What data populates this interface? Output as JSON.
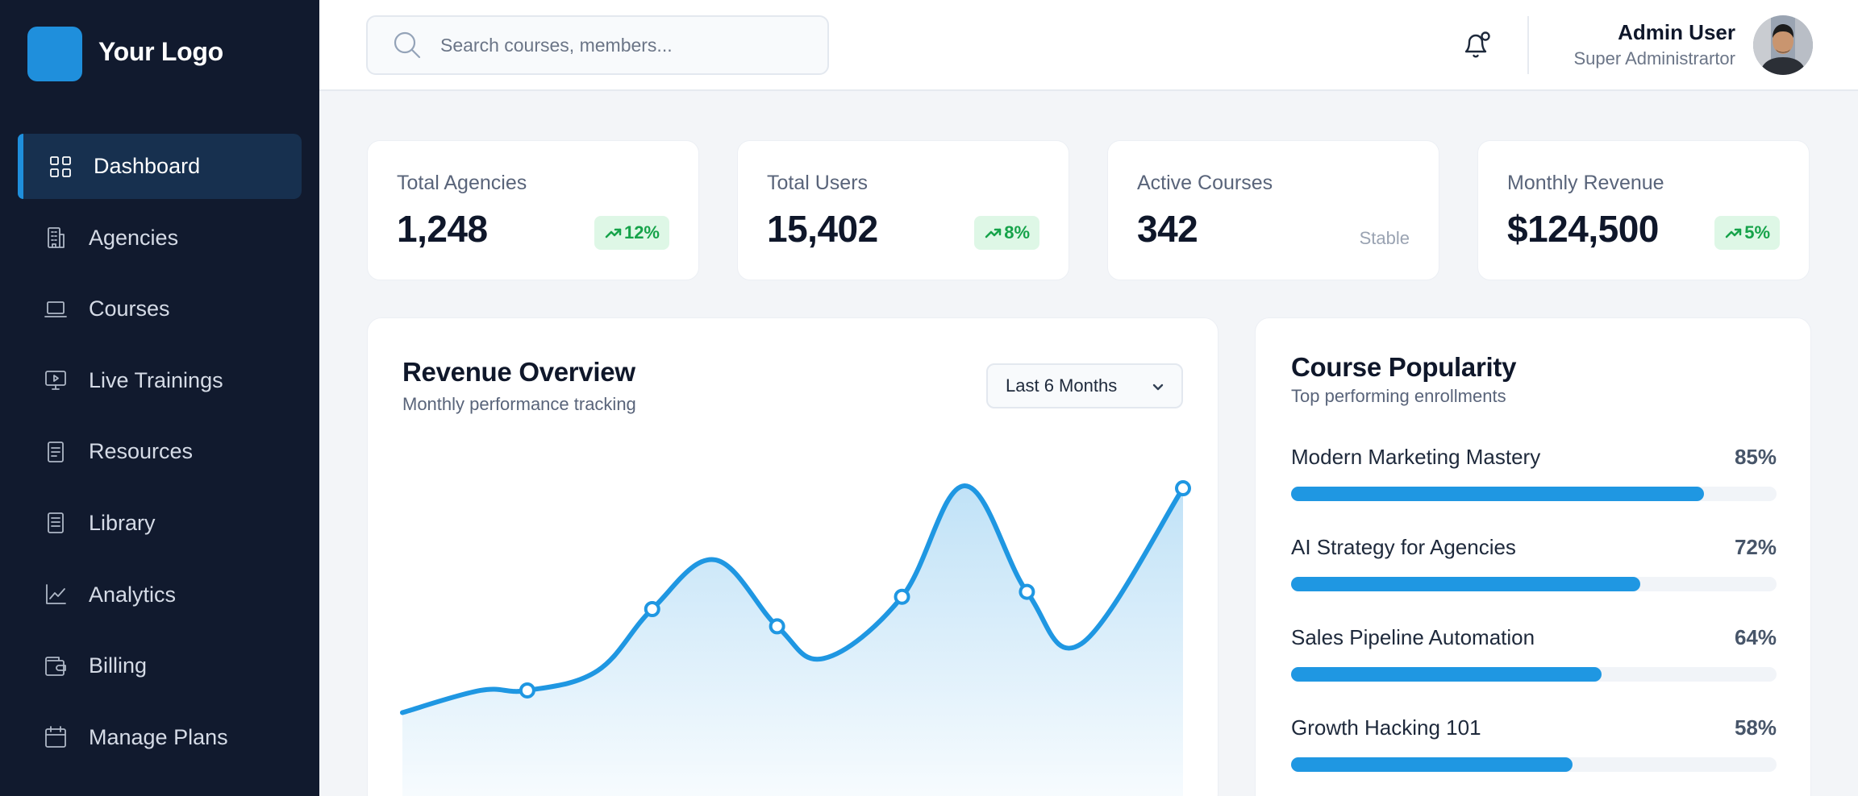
{
  "brand": {
    "logo_text": "Your Logo",
    "logo_color": "#1f8fdc"
  },
  "sidebar": {
    "items": [
      {
        "label": "Dashboard",
        "icon": "grid-icon",
        "active": true
      },
      {
        "label": "Agencies",
        "icon": "building-icon",
        "active": false
      },
      {
        "label": "Courses",
        "icon": "laptop-icon",
        "active": false
      },
      {
        "label": "Live Trainings",
        "icon": "monitor-play-icon",
        "active": false
      },
      {
        "label": "Resources",
        "icon": "document-icon",
        "active": false
      },
      {
        "label": "Library",
        "icon": "book-icon",
        "active": false
      },
      {
        "label": "Analytics",
        "icon": "line-chart-icon",
        "active": false
      },
      {
        "label": "Billing",
        "icon": "wallet-icon",
        "active": false
      },
      {
        "label": "Manage Plans",
        "icon": "calendar-icon",
        "active": false
      }
    ]
  },
  "header": {
    "search_placeholder": "Search courses, members...",
    "user": {
      "name": "Admin User",
      "role": "Super Administrartor"
    }
  },
  "stats": [
    {
      "label": "Total Agencies",
      "value": "1,248",
      "badge": "12%",
      "trend": "up"
    },
    {
      "label": "Total Users",
      "value": "15,402",
      "badge": "8%",
      "trend": "up"
    },
    {
      "label": "Active Courses",
      "value": "342",
      "status": "Stable"
    },
    {
      "label": "Monthly Revenue",
      "value": "$124,500",
      "badge": "5%",
      "trend": "up"
    }
  ],
  "revenue": {
    "title": "Revenue Overview",
    "subtitle": "Monthly performance tracking",
    "range": "Last 6 Months"
  },
  "chart_data": {
    "type": "area",
    "title": "Revenue Overview",
    "xlabel": "",
    "ylabel": "",
    "grid": false,
    "points": [
      {
        "x": 0.0,
        "y": 0.08
      },
      {
        "x": 0.16,
        "y": 0.17
      },
      {
        "x": 0.32,
        "y": 0.5
      },
      {
        "x": 0.48,
        "y": 0.43
      },
      {
        "x": 0.64,
        "y": 0.55
      },
      {
        "x": 0.8,
        "y": 0.57
      },
      {
        "x": 1.0,
        "y": 0.99
      }
    ],
    "curve_points": [
      [
        0.0,
        0.08
      ],
      [
        0.1,
        0.17
      ],
      [
        0.16,
        0.17
      ],
      [
        0.25,
        0.25
      ],
      [
        0.32,
        0.5
      ],
      [
        0.4,
        0.7
      ],
      [
        0.48,
        0.43
      ],
      [
        0.54,
        0.3
      ],
      [
        0.64,
        0.55
      ],
      [
        0.72,
        1.0
      ],
      [
        0.8,
        0.57
      ],
      [
        0.87,
        0.36
      ],
      [
        1.0,
        0.99
      ]
    ],
    "color": "#1f97e2"
  },
  "popularity": {
    "title": "Course Popularity",
    "subtitle": "Top performing enrollments",
    "courses": [
      {
        "name": "Modern Marketing Mastery",
        "pct_label": "85%",
        "value": 0.85
      },
      {
        "name": "AI Strategy for Agencies",
        "pct_label": "72%",
        "value": 0.72
      },
      {
        "name": "Sales Pipeline Automation",
        "pct_label": "64%",
        "value": 0.64
      },
      {
        "name": "Growth Hacking 101",
        "pct_label": "58%",
        "value": 0.58
      }
    ]
  }
}
